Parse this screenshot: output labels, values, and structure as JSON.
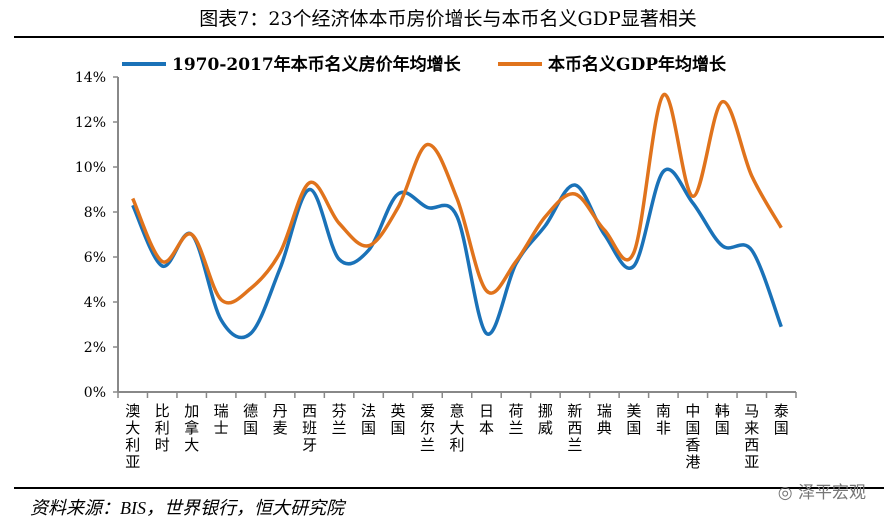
{
  "title": "图表7：23个经济体本币房价增长与本币名义GDP显著相关",
  "source": "资料来源：BIS，世界银行，恒大研究院",
  "watermark": "泽平宏观",
  "chart_data": {
    "type": "line",
    "title": "",
    "xlabel": "",
    "ylabel": "",
    "ylim": [
      0,
      14
    ],
    "yticks": [
      "0%",
      "2%",
      "4%",
      "6%",
      "8%",
      "10%",
      "12%",
      "14%"
    ],
    "grid": false,
    "legend_position": "top",
    "categories": [
      "澳大利亚",
      "比利时",
      "加拿大",
      "瑞士",
      "德国",
      "丹麦",
      "西班牙",
      "芬兰",
      "法国",
      "英国",
      "爱尔兰",
      "意大利",
      "日本",
      "荷兰",
      "挪威",
      "新西兰",
      "瑞典",
      "美国",
      "南非",
      "中国香港",
      "韩国",
      "马来西亚",
      "泰国"
    ],
    "series": [
      {
        "name": "1970-2017年本币名义房价年均增长",
        "color": "#1a72b8",
        "values": [
          8.3,
          5.6,
          7.0,
          3.2,
          2.6,
          5.5,
          9.0,
          5.9,
          6.3,
          8.8,
          8.2,
          7.8,
          2.6,
          5.7,
          7.4,
          9.2,
          7.0,
          5.6,
          9.8,
          8.4,
          6.5,
          6.3,
          2.9
        ]
      },
      {
        "name": "本币名义GDP年均增长",
        "color": "#e0731c",
        "values": [
          8.6,
          5.8,
          7.0,
          4.1,
          4.6,
          6.2,
          9.3,
          7.5,
          6.5,
          8.2,
          11.0,
          8.6,
          4.5,
          5.8,
          7.8,
          8.8,
          7.2,
          6.2,
          13.2,
          8.7,
          12.9,
          9.6,
          7.3
        ]
      }
    ]
  }
}
